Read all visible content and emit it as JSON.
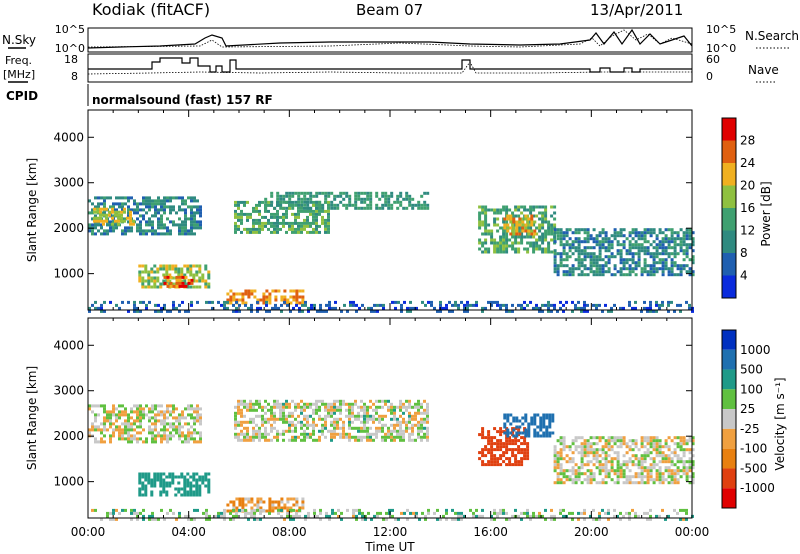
{
  "header": {
    "station": "Kodiak (fitACF)",
    "beam": "Beam 07",
    "date": "13/Apr/2011"
  },
  "panel_labels": {
    "nsky": "N.Sky",
    "freq_line1": "Freq.",
    "freq_line2": "[MHz]",
    "cpid": "CPID",
    "nsearch": "N.Search",
    "nave": "Nave",
    "cpid_text": "normalsound (fast) 157 RF"
  },
  "small_axes": {
    "noise_ticks": [
      "10^5",
      "10^0"
    ],
    "freq_ticks": [
      "18",
      "8"
    ],
    "nave_ticks": [
      "60",
      "0"
    ]
  },
  "colors": {
    "power_scale": [
      "#0a2bdc",
      "#1f5fb0",
      "#2f8a80",
      "#3fa070",
      "#8fc040",
      "#f0b020",
      "#e06010",
      "#e00000"
    ],
    "velocity_scale": [
      "#0030c0",
      "#1f70b0",
      "#1f9a88",
      "#60c040",
      "#c8c8c8",
      "#f0a040",
      "#e88010",
      "#e04010",
      "#e00000"
    ]
  },
  "chart_data": [
    {
      "type": "heatmap",
      "title": "",
      "xlabel": "",
      "ylabel": "Slant Range [km]",
      "x_ticks": [
        "00:00",
        "04:00",
        "08:00",
        "12:00",
        "16:00",
        "20:00",
        "00:00"
      ],
      "y_ticks": [
        "1000",
        "2000",
        "3000",
        "4000"
      ],
      "xlim": [
        0,
        24
      ],
      "ylim": [
        200,
        4600
      ],
      "colorbar": {
        "label": "Power [dB]",
        "ticks": [
          "4",
          "8",
          "12",
          "16",
          "20",
          "24",
          "28"
        ],
        "range": [
          0,
          32
        ]
      },
      "regions": [
        {
          "t0": 0.0,
          "t1": 4.5,
          "r0": 1900,
          "r1": 2700,
          "value": 10
        },
        {
          "t0": 0.2,
          "t1": 1.8,
          "r0": 2100,
          "r1": 2450,
          "value": 20
        },
        {
          "t0": 2.0,
          "t1": 4.8,
          "r0": 700,
          "r1": 1200,
          "value": 18
        },
        {
          "t0": 3.0,
          "t1": 4.2,
          "r0": 750,
          "r1": 950,
          "value": 26
        },
        {
          "t0": 5.5,
          "t1": 8.5,
          "r0": 350,
          "r1": 650,
          "value": 24
        },
        {
          "t0": 5.8,
          "t1": 9.5,
          "r0": 1900,
          "r1": 2600,
          "value": 14
        },
        {
          "t0": 7.0,
          "t1": 13.5,
          "r0": 2450,
          "r1": 2800,
          "value": 12
        },
        {
          "t0": 15.5,
          "t1": 18.5,
          "r0": 1500,
          "r1": 2500,
          "value": 14
        },
        {
          "t0": 16.5,
          "t1": 17.8,
          "r0": 1900,
          "r1": 2300,
          "value": 22
        },
        {
          "t0": 18.5,
          "t1": 24.0,
          "r0": 1000,
          "r1": 2000,
          "value": 10
        },
        {
          "t0": 0.0,
          "t1": 24.0,
          "r0": 200,
          "r1": 400,
          "value": 6
        }
      ]
    },
    {
      "type": "heatmap",
      "title": "",
      "xlabel": "Time UT",
      "ylabel": "Slant Range [km]",
      "x_ticks": [
        "00:00",
        "04:00",
        "08:00",
        "12:00",
        "16:00",
        "20:00",
        "00:00"
      ],
      "y_ticks": [
        "1000",
        "2000",
        "3000",
        "4000"
      ],
      "xlim": [
        0,
        24
      ],
      "ylim": [
        200,
        4600
      ],
      "colorbar": {
        "label": "Velocity [m s⁻¹]",
        "ticks": [
          "1000",
          "500",
          "100",
          "25",
          "-25",
          "-100",
          "-500",
          "-1000"
        ]
      },
      "regions": [
        {
          "t0": 0.0,
          "t1": 4.5,
          "r0": 1900,
          "r1": 2700,
          "value": 0
        },
        {
          "t0": 2.0,
          "t1": 4.8,
          "r0": 700,
          "r1": 1200,
          "value": 150
        },
        {
          "t0": 5.5,
          "t1": 8.5,
          "r0": 350,
          "r1": 650,
          "value": -60
        },
        {
          "t0": 5.8,
          "t1": 13.5,
          "r0": 1900,
          "r1": 2800,
          "value": 5
        },
        {
          "t0": 15.5,
          "t1": 17.5,
          "r0": 1400,
          "r1": 2200,
          "value": -400
        },
        {
          "t0": 16.5,
          "t1": 18.5,
          "r0": 2000,
          "r1": 2500,
          "value": 400
        },
        {
          "t0": 18.5,
          "t1": 24.0,
          "r0": 1000,
          "r1": 2000,
          "value": 0
        },
        {
          "t0": 0.0,
          "t1": 24.0,
          "r0": 200,
          "r1": 400,
          "value": 30
        }
      ]
    }
  ]
}
